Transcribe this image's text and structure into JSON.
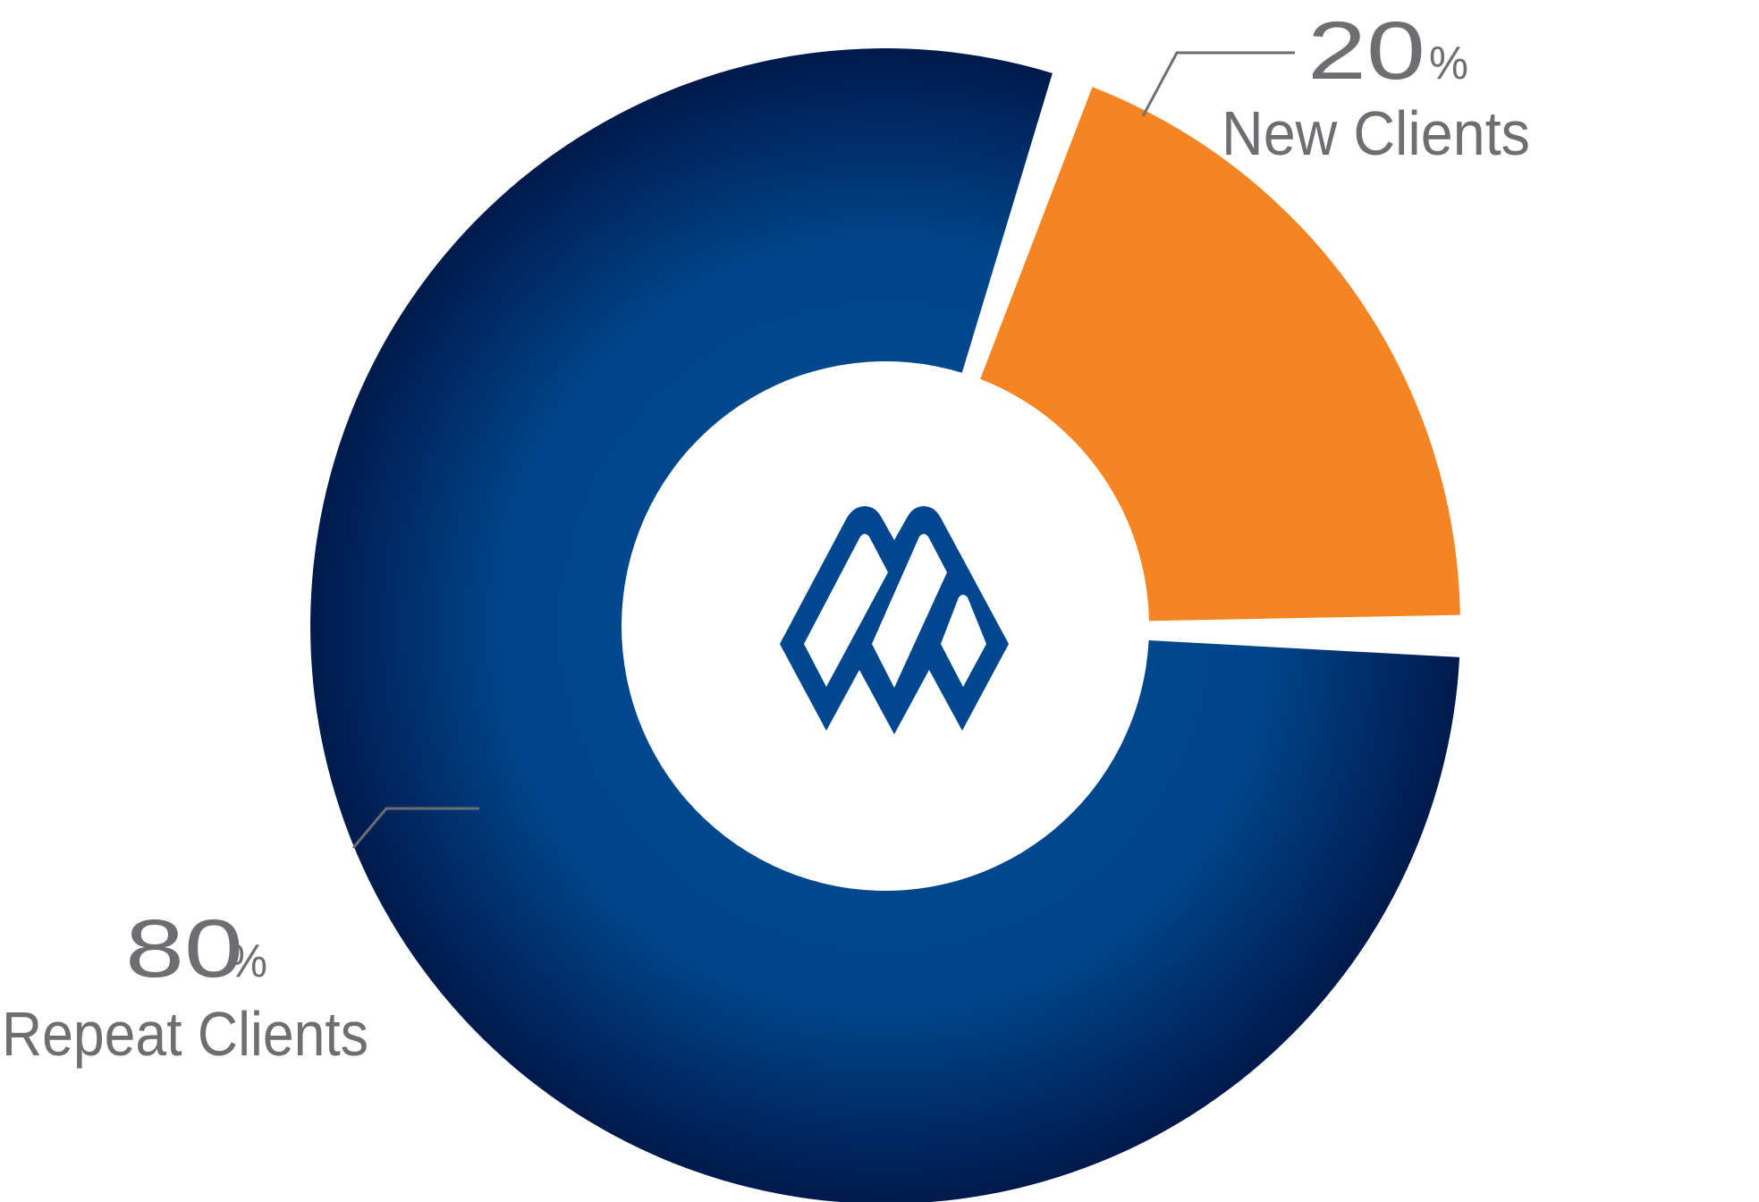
{
  "chart_data": {
    "type": "pie",
    "variant": "donut",
    "title": "",
    "series": [
      {
        "name": "New Clients",
        "value": 20,
        "value_label": "20",
        "unit": "%",
        "color": "#f58423"
      },
      {
        "name": "Repeat Clients",
        "value": 80,
        "value_label": "80",
        "unit": "%",
        "color_center": "#004a91",
        "color_edge": "#00194b"
      }
    ],
    "center_logo": {
      "icon": "mountain-logo-icon",
      "color": "#00478f"
    },
    "leader_line_color": "#6d6e71"
  }
}
